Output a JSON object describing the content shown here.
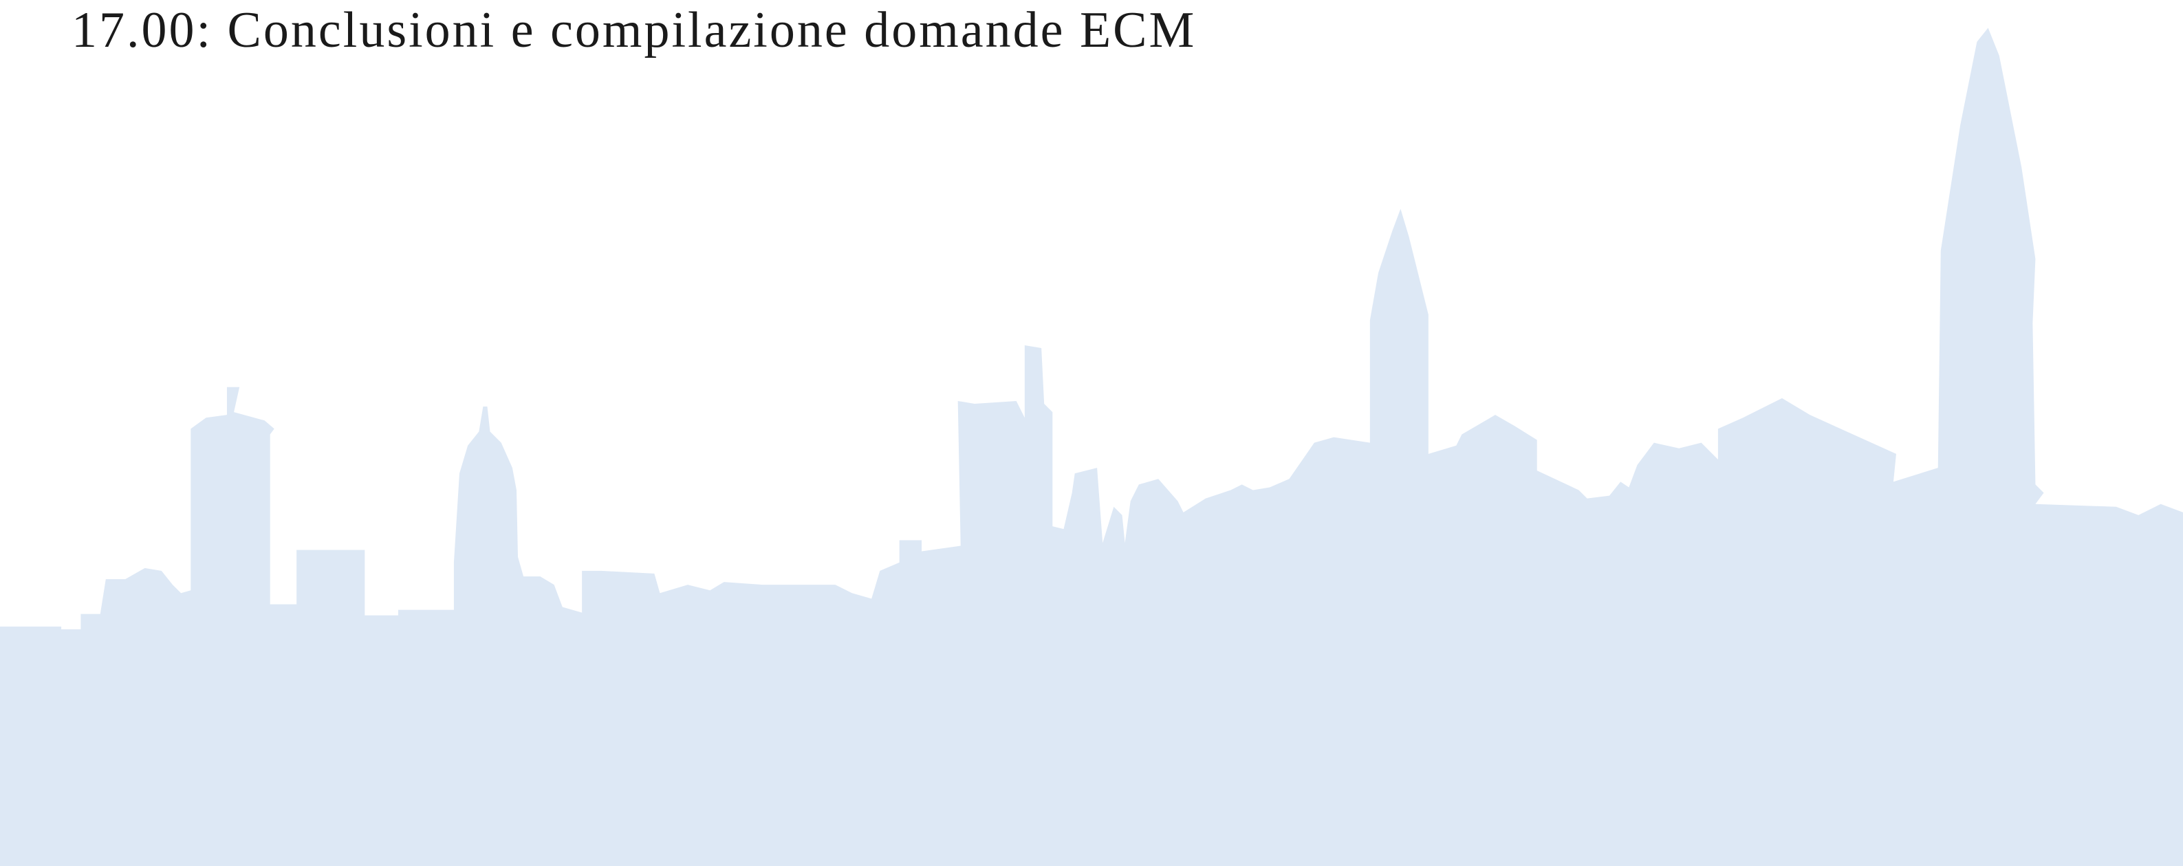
{
  "schedule": {
    "item": "17.00: Conclusioni e compilazione domande ECM"
  }
}
